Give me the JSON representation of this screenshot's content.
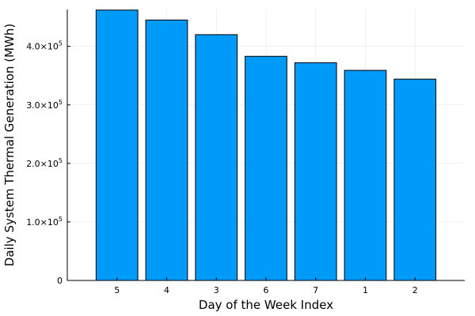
{
  "chart_data": {
    "type": "bar",
    "categories": [
      "5",
      "4",
      "3",
      "6",
      "7",
      "1",
      "2"
    ],
    "values": [
      462000,
      445000,
      420000,
      383000,
      372000,
      359000,
      344000
    ],
    "xlabel": "Day of the Week Index",
    "ylabel": "Daily System Thermal Generation (MWh)",
    "ylim": [
      0,
      463000
    ],
    "yticks": [
      0,
      100000,
      200000,
      300000,
      400000
    ],
    "ytick_labels": [
      {
        "mantissa": "0",
        "exponent": ""
      },
      {
        "mantissa": "1.0×10",
        "exponent": "5"
      },
      {
        "mantissa": "2.0×10",
        "exponent": "5"
      },
      {
        "mantissa": "3.0×10",
        "exponent": "5"
      },
      {
        "mantissa": "4.0×10",
        "exponent": "5"
      }
    ],
    "bar_color": "#009af9",
    "grid": true,
    "legend": "none"
  }
}
